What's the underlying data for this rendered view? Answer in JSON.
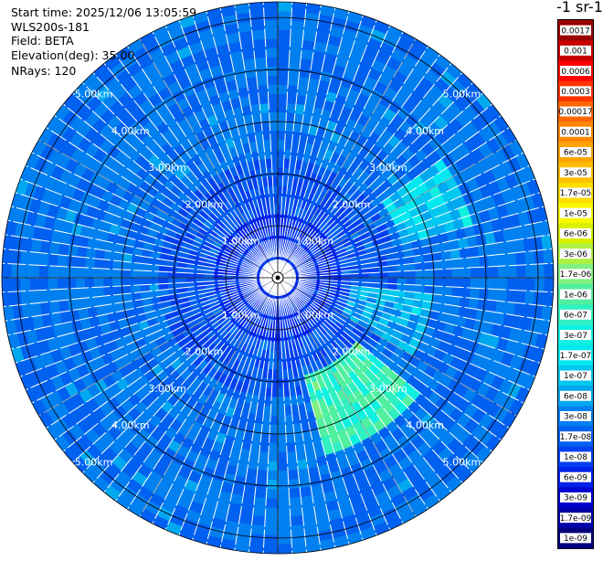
{
  "header": {
    "start_time": "Start time: 2025/12/06 13:05:59",
    "instrument": "WLS200s-181",
    "field": "Field: BETA",
    "elevation": "Elevation(deg): 35.00",
    "nrays": "NRays: 120"
  },
  "colorbar": {
    "unit_label": "-1 sr-1",
    "labels": [
      "0.0017",
      "0.001",
      "0.0006",
      "0.0003",
      "0.00017",
      "0.0001",
      "6e-05",
      "3e-05",
      "1.7e-05",
      "1e-05",
      "6e-06",
      "3e-06",
      "1.7e-06",
      "1e-06",
      "6e-07",
      "3e-07",
      "1.7e-07",
      "1e-07",
      "6e-08",
      "3e-08",
      "1.7e-08",
      "1e-08",
      "6e-09",
      "3e-09",
      "1.7e-09",
      "1e-09"
    ],
    "colors": [
      "#9a0000",
      "#c80000",
      "#ff0000",
      "#ff3300",
      "#ff6600",
      "#ff8800",
      "#ffa500",
      "#ffc000",
      "#ffdd00",
      "#f8f800",
      "#d8f000",
      "#b0f040",
      "#80f080",
      "#50f0a0",
      "#30f0c0",
      "#10f0e0",
      "#00e8f0",
      "#00c8f0",
      "#00a8f0",
      "#0080f0",
      "#0060f0",
      "#0040f0",
      "#0020e8",
      "#0000d0",
      "#0000a8",
      "#000080"
    ]
  },
  "chart_data": {
    "type": "heatmap",
    "projection": "polar-ppi",
    "n_rays": 120,
    "max_range_km": 5.3,
    "range_rings_km": [
      1,
      2,
      3,
      4,
      5
    ],
    "range_ring_labels": [
      "1.00km",
      "2.00km",
      "3.00km",
      "4.00km",
      "5.00km"
    ],
    "background_value": "3e-08",
    "enhanced_regions": [
      {
        "azimuth_deg": [
          130,
          165
        ],
        "range_km": [
          2.0,
          3.6
        ],
        "peak_value": "1e-06"
      },
      {
        "azimuth_deg": [
          55,
          75
        ],
        "range_km": [
          2.5,
          3.8
        ],
        "peak_value": "1.7e-07"
      },
      {
        "azimuth_deg": [
          95,
          120
        ],
        "range_km": [
          1.5,
          3.0
        ],
        "peak_value": "1e-07"
      }
    ]
  }
}
